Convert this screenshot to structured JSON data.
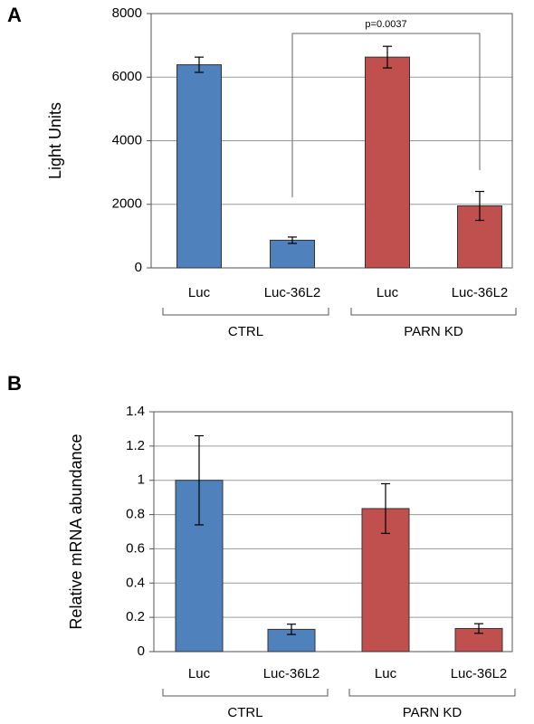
{
  "chart_data": [
    {
      "type": "bar",
      "panel_label": "A",
      "ylabel": "Light Units",
      "categories": [
        "Luc",
        "Luc-36L2",
        "Luc",
        "Luc-36L2"
      ],
      "series": [
        {
          "name": "CTRL",
          "color": "#4f81bd",
          "values": [
            6390,
            870,
            null,
            null
          ],
          "errors": [
            240,
            100,
            null,
            null
          ]
        },
        {
          "name": "PARN KD",
          "color": "#c0504d",
          "values": [
            null,
            null,
            6630,
            1950
          ],
          "errors": [
            null,
            null,
            340,
            455
          ]
        }
      ],
      "ylim": [
        0,
        8000
      ],
      "yticks": [
        0,
        2000,
        4000,
        6000,
        8000
      ],
      "grid": true,
      "annotation": "p=0.0037"
    },
    {
      "type": "bar",
      "panel_label": "B",
      "ylabel": "Relative mRNA abundance",
      "categories": [
        "Luc",
        "Luc-36L2",
        "Luc",
        "Luc-36L2"
      ],
      "series": [
        {
          "name": "CTRL",
          "color": "#4f81bd",
          "values": [
            1.0,
            0.13,
            null,
            null
          ],
          "errors": [
            0.26,
            0.03,
            null,
            null
          ]
        },
        {
          "name": "PARN KD",
          "color": "#c0504d",
          "values": [
            null,
            null,
            0.835,
            0.135
          ],
          "errors": [
            null,
            null,
            0.145,
            0.028
          ]
        }
      ],
      "ylim": [
        0,
        1.4
      ],
      "yticks": [
        0,
        0.2,
        0.4,
        0.6,
        0.8,
        1,
        1.2,
        1.4
      ],
      "grid": true
    }
  ]
}
